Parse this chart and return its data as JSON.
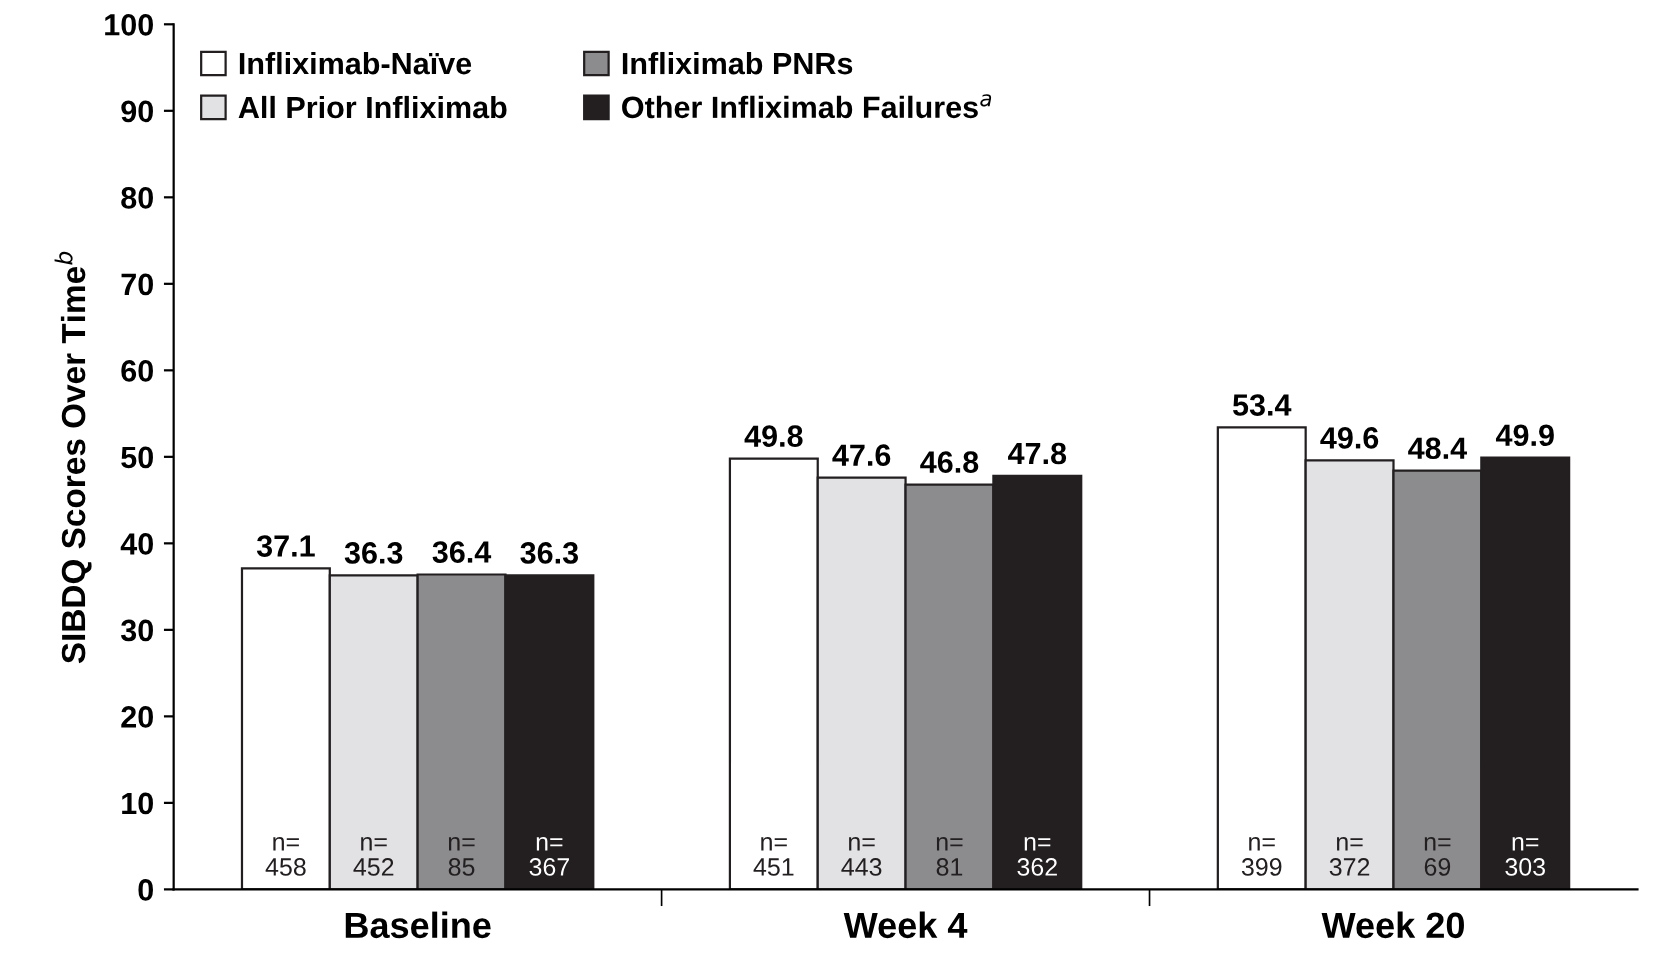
{
  "chart_data": {
    "type": "bar",
    "ylabel": "SIBDQ Scores Over Time$^{b}$",
    "categories": [
      "Baseline",
      "Week 4",
      "Week 20"
    ],
    "series": [
      {
        "name": "Infliximab-Naïve",
        "color": "#ffffff",
        "values": [
          37.1,
          49.8,
          53.4
        ]
      },
      {
        "name": "All Prior Infliximab",
        "color": "#e2e2e4",
        "values": [
          36.3,
          47.6,
          49.6
        ]
      },
      {
        "name": "Infliximab PNRs",
        "color": "#8c8c8e",
        "values": [
          36.4,
          46.8,
          48.4
        ]
      },
      {
        "name": "Other Infliximab Failures$^{a}$",
        "color": "#231f20",
        "values": [
          36.3,
          47.8,
          49.9
        ]
      }
    ],
    "ylim": [
      0,
      100
    ],
    "yticks": [
      0,
      10,
      20,
      30,
      40,
      50,
      60,
      70,
      80,
      90,
      100
    ],
    "data_labels": true,
    "grid": false,
    "legend": "top left",
    "annotations": [
      "n=\n458",
      "n=\n452",
      "n=\n85",
      "n=\n367",
      "n=\n451",
      "n=\n443",
      "n=\n81",
      "n=\n362",
      "n=\n399",
      "n=\n372",
      "n=\n69",
      "n=\n303"
    ]
  }
}
